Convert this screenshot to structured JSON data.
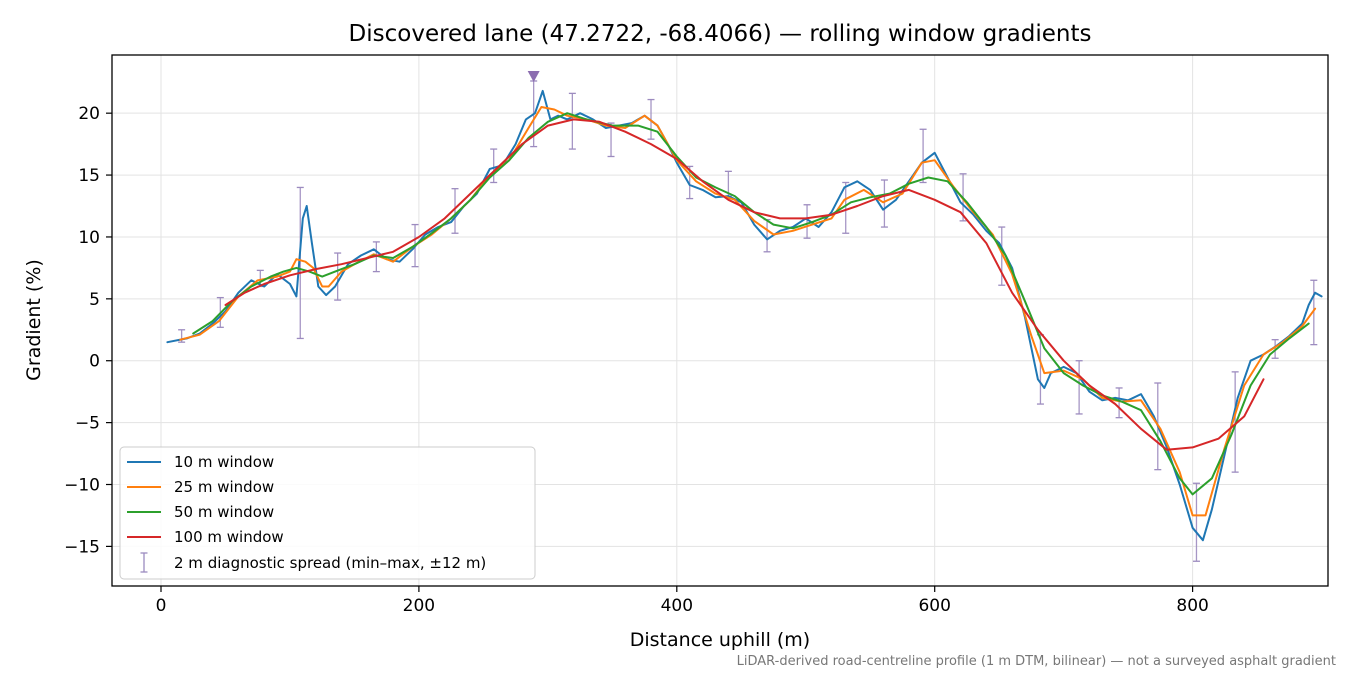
{
  "chart_data": {
    "type": "line",
    "title": "Discovered lane (47.2722, -68.4066) — rolling window gradients",
    "xlabel": "Distance uphill (m)",
    "ylabel": "Gradient (%)",
    "footnote": "LiDAR-derived road-centreline profile (1 m DTM, bilinear) — not a surveyed asphalt gradient",
    "xlim": [
      -38,
      905
    ],
    "ylim": [
      -18.2,
      24.7
    ],
    "xticks": [
      0,
      200,
      400,
      600,
      800
    ],
    "yticks": [
      -15,
      -10,
      -5,
      0,
      5,
      10,
      15,
      20
    ],
    "grid": true,
    "legend_position": "lower-left",
    "series": [
      {
        "name": "10 m window",
        "color": "#1f77b4",
        "points": [
          [
            5,
            1.5
          ],
          [
            20,
            1.8
          ],
          [
            30,
            2.2
          ],
          [
            40,
            3.0
          ],
          [
            50,
            4.0
          ],
          [
            60,
            5.5
          ],
          [
            70,
            6.5
          ],
          [
            80,
            6.0
          ],
          [
            90,
            7.0
          ],
          [
            100,
            6.2
          ],
          [
            105,
            5.2
          ],
          [
            110,
            11.5
          ],
          [
            113,
            12.5
          ],
          [
            117,
            9.5
          ],
          [
            122,
            6.0
          ],
          [
            128,
            5.3
          ],
          [
            135,
            6.0
          ],
          [
            145,
            7.8
          ],
          [
            155,
            8.5
          ],
          [
            165,
            9.0
          ],
          [
            175,
            8.2
          ],
          [
            185,
            8.0
          ],
          [
            195,
            9.0
          ],
          [
            205,
            10.2
          ],
          [
            215,
            10.8
          ],
          [
            225,
            11.2
          ],
          [
            235,
            12.5
          ],
          [
            245,
            13.5
          ],
          [
            255,
            15.5
          ],
          [
            265,
            15.8
          ],
          [
            275,
            17.5
          ],
          [
            283,
            19.5
          ],
          [
            290,
            20.0
          ],
          [
            296,
            21.8
          ],
          [
            302,
            19.5
          ],
          [
            308,
            19.8
          ],
          [
            315,
            19.5
          ],
          [
            325,
            20.0
          ],
          [
            335,
            19.5
          ],
          [
            345,
            18.8
          ],
          [
            355,
            19.0
          ],
          [
            365,
            19.2
          ],
          [
            375,
            19.8
          ],
          [
            385,
            19.0
          ],
          [
            393,
            17.5
          ],
          [
            400,
            16.0
          ],
          [
            410,
            14.2
          ],
          [
            420,
            13.8
          ],
          [
            430,
            13.2
          ],
          [
            440,
            13.3
          ],
          [
            450,
            12.8
          ],
          [
            460,
            11.0
          ],
          [
            470,
            9.8
          ],
          [
            480,
            10.5
          ],
          [
            490,
            10.8
          ],
          [
            500,
            11.5
          ],
          [
            510,
            10.8
          ],
          [
            520,
            12.0
          ],
          [
            530,
            14.0
          ],
          [
            540,
            14.5
          ],
          [
            550,
            13.8
          ],
          [
            560,
            12.2
          ],
          [
            570,
            13.0
          ],
          [
            580,
            14.5
          ],
          [
            590,
            16.0
          ],
          [
            600,
            16.8
          ],
          [
            610,
            14.8
          ],
          [
            620,
            12.8
          ],
          [
            630,
            11.8
          ],
          [
            640,
            10.5
          ],
          [
            650,
            9.5
          ],
          [
            660,
            7.5
          ],
          [
            670,
            3.5
          ],
          [
            680,
            -1.5
          ],
          [
            685,
            -2.2
          ],
          [
            690,
            -1.0
          ],
          [
            700,
            -0.5
          ],
          [
            710,
            -1.0
          ],
          [
            720,
            -2.5
          ],
          [
            730,
            -3.2
          ],
          [
            740,
            -3.0
          ],
          [
            750,
            -3.2
          ],
          [
            760,
            -2.7
          ],
          [
            770,
            -4.5
          ],
          [
            780,
            -7.0
          ],
          [
            790,
            -10.0
          ],
          [
            800,
            -13.5
          ],
          [
            808,
            -14.5
          ],
          [
            815,
            -12.0
          ],
          [
            825,
            -7.5
          ],
          [
            835,
            -3.0
          ],
          [
            845,
            0.0
          ],
          [
            855,
            0.5
          ],
          [
            865,
            1.2
          ],
          [
            875,
            2.0
          ],
          [
            885,
            3.0
          ],
          [
            890,
            4.5
          ],
          [
            895,
            5.5
          ],
          [
            900,
            5.2
          ]
        ]
      },
      {
        "name": "25 m window",
        "color": "#ff7f0e",
        "points": [
          [
            15,
            1.7
          ],
          [
            30,
            2.1
          ],
          [
            45,
            3.2
          ],
          [
            60,
            5.2
          ],
          [
            75,
            6.5
          ],
          [
            90,
            6.8
          ],
          [
            100,
            7.2
          ],
          [
            105,
            8.2
          ],
          [
            112,
            8.0
          ],
          [
            118,
            7.5
          ],
          [
            125,
            6.0
          ],
          [
            130,
            6.0
          ],
          [
            140,
            7.2
          ],
          [
            150,
            7.8
          ],
          [
            165,
            8.6
          ],
          [
            180,
            8.0
          ],
          [
            195,
            9.2
          ],
          [
            210,
            10.2
          ],
          [
            225,
            11.5
          ],
          [
            240,
            13.0
          ],
          [
            255,
            15.0
          ],
          [
            270,
            16.2
          ],
          [
            285,
            18.8
          ],
          [
            295,
            20.5
          ],
          [
            305,
            20.3
          ],
          [
            315,
            19.8
          ],
          [
            330,
            19.5
          ],
          [
            345,
            19.0
          ],
          [
            360,
            18.8
          ],
          [
            375,
            19.8
          ],
          [
            385,
            19.0
          ],
          [
            400,
            16.2
          ],
          [
            415,
            14.5
          ],
          [
            430,
            13.5
          ],
          [
            445,
            13.0
          ],
          [
            460,
            11.3
          ],
          [
            475,
            10.2
          ],
          [
            490,
            10.5
          ],
          [
            505,
            11.0
          ],
          [
            520,
            11.5
          ],
          [
            530,
            13.0
          ],
          [
            545,
            13.8
          ],
          [
            560,
            12.8
          ],
          [
            575,
            13.5
          ],
          [
            590,
            16.0
          ],
          [
            600,
            16.2
          ],
          [
            615,
            14.0
          ],
          [
            630,
            12.0
          ],
          [
            645,
            10.2
          ],
          [
            660,
            7.0
          ],
          [
            675,
            2.0
          ],
          [
            685,
            -1.0
          ],
          [
            700,
            -0.8
          ],
          [
            715,
            -1.5
          ],
          [
            730,
            -3.0
          ],
          [
            745,
            -3.3
          ],
          [
            760,
            -3.2
          ],
          [
            775,
            -5.5
          ],
          [
            790,
            -9.0
          ],
          [
            800,
            -12.5
          ],
          [
            810,
            -12.5
          ],
          [
            825,
            -7.0
          ],
          [
            840,
            -2.0
          ],
          [
            855,
            0.5
          ],
          [
            870,
            1.5
          ],
          [
            885,
            2.8
          ],
          [
            895,
            4.2
          ]
        ]
      },
      {
        "name": "50 m window",
        "color": "#2ca02c",
        "points": [
          [
            25,
            2.2
          ],
          [
            40,
            3.2
          ],
          [
            55,
            4.8
          ],
          [
            70,
            6.0
          ],
          [
            85,
            6.8
          ],
          [
            95,
            7.2
          ],
          [
            105,
            7.5
          ],
          [
            115,
            7.2
          ],
          [
            125,
            6.8
          ],
          [
            135,
            7.2
          ],
          [
            150,
            7.8
          ],
          [
            165,
            8.5
          ],
          [
            180,
            8.3
          ],
          [
            195,
            9.2
          ],
          [
            210,
            10.3
          ],
          [
            225,
            11.5
          ],
          [
            240,
            13.0
          ],
          [
            255,
            14.8
          ],
          [
            270,
            16.2
          ],
          [
            285,
            18.0
          ],
          [
            300,
            19.3
          ],
          [
            315,
            20.0
          ],
          [
            330,
            19.5
          ],
          [
            350,
            19.0
          ],
          [
            370,
            19.0
          ],
          [
            385,
            18.5
          ],
          [
            400,
            16.5
          ],
          [
            415,
            14.8
          ],
          [
            430,
            14.0
          ],
          [
            445,
            13.3
          ],
          [
            460,
            12.0
          ],
          [
            475,
            11.0
          ],
          [
            490,
            10.7
          ],
          [
            505,
            11.2
          ],
          [
            520,
            11.8
          ],
          [
            535,
            12.8
          ],
          [
            550,
            13.2
          ],
          [
            565,
            13.5
          ],
          [
            580,
            14.3
          ],
          [
            595,
            14.8
          ],
          [
            610,
            14.5
          ],
          [
            625,
            12.8
          ],
          [
            640,
            10.8
          ],
          [
            655,
            8.5
          ],
          [
            670,
            4.8
          ],
          [
            685,
            1.0
          ],
          [
            700,
            -1.0
          ],
          [
            715,
            -2.0
          ],
          [
            730,
            -2.8
          ],
          [
            745,
            -3.3
          ],
          [
            760,
            -4.0
          ],
          [
            775,
            -6.5
          ],
          [
            790,
            -9.5
          ],
          [
            800,
            -10.8
          ],
          [
            815,
            -9.5
          ],
          [
            830,
            -6.0
          ],
          [
            845,
            -2.0
          ],
          [
            860,
            0.5
          ],
          [
            875,
            1.8
          ],
          [
            890,
            3.0
          ]
        ]
      },
      {
        "name": "100 m window",
        "color": "#d62728",
        "points": [
          [
            50,
            4.5
          ],
          [
            65,
            5.5
          ],
          [
            80,
            6.2
          ],
          [
            100,
            6.9
          ],
          [
            120,
            7.4
          ],
          [
            140,
            7.8
          ],
          [
            160,
            8.3
          ],
          [
            180,
            8.8
          ],
          [
            200,
            10.0
          ],
          [
            220,
            11.5
          ],
          [
            240,
            13.5
          ],
          [
            260,
            15.5
          ],
          [
            280,
            17.5
          ],
          [
            300,
            19.0
          ],
          [
            320,
            19.5
          ],
          [
            340,
            19.3
          ],
          [
            360,
            18.5
          ],
          [
            380,
            17.5
          ],
          [
            400,
            16.3
          ],
          [
            420,
            14.5
          ],
          [
            440,
            13.0
          ],
          [
            460,
            12.0
          ],
          [
            480,
            11.5
          ],
          [
            500,
            11.5
          ],
          [
            520,
            11.8
          ],
          [
            540,
            12.5
          ],
          [
            560,
            13.3
          ],
          [
            580,
            13.8
          ],
          [
            600,
            13.0
          ],
          [
            620,
            12.0
          ],
          [
            640,
            9.5
          ],
          [
            660,
            5.5
          ],
          [
            680,
            2.5
          ],
          [
            700,
            0.0
          ],
          [
            720,
            -2.0
          ],
          [
            740,
            -3.5
          ],
          [
            760,
            -5.5
          ],
          [
            780,
            -7.2
          ],
          [
            800,
            -7.0
          ],
          [
            820,
            -6.3
          ],
          [
            840,
            -4.5
          ],
          [
            855,
            -1.5
          ]
        ]
      }
    ],
    "error_bars": {
      "name": "2 m diagnostic spread (min–max, ±12 m)",
      "color": "#9c8bbf",
      "bars": [
        [
          16,
          1.5,
          2.5
        ],
        [
          46,
          2.7,
          5.1
        ],
        [
          77,
          6.0,
          7.3
        ],
        [
          108,
          1.8,
          14.0
        ],
        [
          137,
          4.9,
          8.7
        ],
        [
          167,
          7.2,
          9.6
        ],
        [
          197,
          7.6,
          11.0
        ],
        [
          228,
          10.3,
          13.9
        ],
        [
          258,
          14.4,
          17.1
        ],
        [
          289,
          17.3,
          22.6
        ],
        [
          319,
          17.1,
          21.6
        ],
        [
          349,
          16.5,
          19.2
        ],
        [
          380,
          17.9,
          21.1
        ],
        [
          410,
          13.1,
          15.7
        ],
        [
          440,
          13.3,
          15.3
        ],
        [
          470,
          8.8,
          11.4
        ],
        [
          501,
          9.9,
          12.6
        ],
        [
          531,
          10.3,
          14.4
        ],
        [
          561,
          10.8,
          14.6
        ],
        [
          591,
          14.4,
          18.7
        ],
        [
          622,
          11.3,
          15.1
        ],
        [
          652,
          6.1,
          10.8
        ],
        [
          682,
          -3.5,
          2.1
        ],
        [
          712,
          -4.3,
          0.0
        ],
        [
          743,
          -4.6,
          -2.2
        ],
        [
          773,
          -8.8,
          -1.8
        ],
        [
          803,
          -16.2,
          -9.9
        ],
        [
          833,
          -9.0,
          -0.9
        ],
        [
          864,
          0.2,
          1.7
        ],
        [
          894,
          1.3,
          6.5
        ]
      ]
    },
    "markers": [
      {
        "x": 289,
        "y": 23.0,
        "symbol": "down-triangle",
        "color": "#8c6db0"
      }
    ]
  }
}
